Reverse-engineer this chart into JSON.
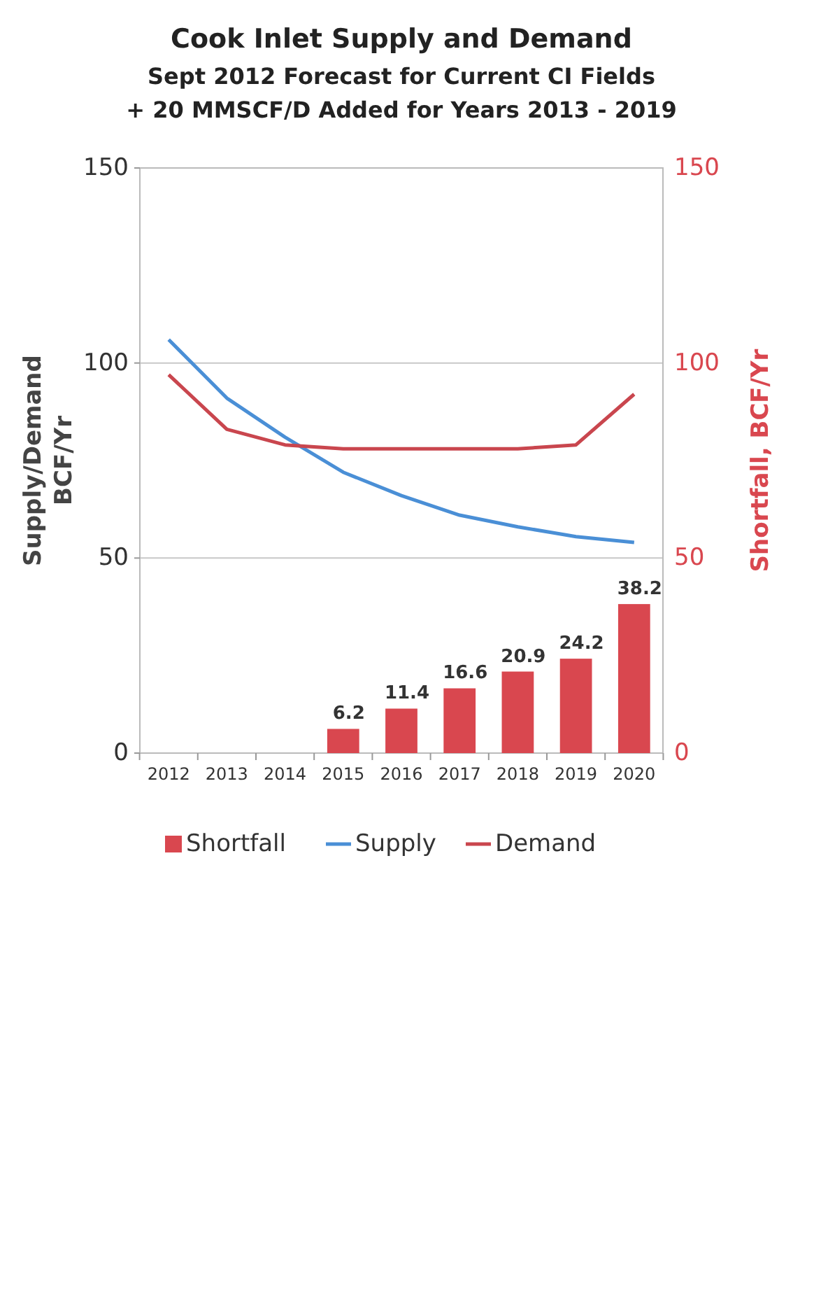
{
  "chart_data": {
    "type": "bar",
    "title": "Cook Inlet Supply and Demand",
    "subtitle": "Sept 2012 Forecast for Current CI Fields\n+ 20 MMSCF/D Added for Years 2013 - 2019",
    "ylabel": "Supply/Demand\nBCF/Yr",
    "y2label": "Shortfall, BCF/Yr",
    "categories": [
      "2012",
      "2013",
      "2014",
      "2015",
      "2016",
      "2017",
      "2018",
      "2019",
      "2020"
    ],
    "series": [
      {
        "name": "Shortfall",
        "axis": "y2",
        "color": "#d9474f",
        "values": [
          null,
          null,
          null,
          6.2,
          11.4,
          16.6,
          20.9,
          24.2,
          38.2
        ],
        "value_labels": [
          null,
          null,
          null,
          "6.2",
          "11.4",
          "16.6",
          "20.9",
          "24.2",
          "38.2"
        ]
      },
      {
        "name": "Supply",
        "type": "line",
        "color": "#4a8fd6",
        "values": [
          106,
          91,
          81,
          72,
          66,
          61,
          58,
          55.5,
          54
        ]
      },
      {
        "name": "Demand",
        "type": "line",
        "color": "#c9464e",
        "values": [
          97,
          83,
          79,
          78,
          78,
          78,
          78,
          79,
          92
        ]
      }
    ],
    "ylim": [
      0,
      150
    ],
    "yticks": [
      0,
      50,
      100,
      150
    ],
    "y2lim": [
      0,
      150
    ],
    "y2ticks": [
      0,
      50,
      100,
      150
    ],
    "grid": "y",
    "legend": "bottom"
  }
}
